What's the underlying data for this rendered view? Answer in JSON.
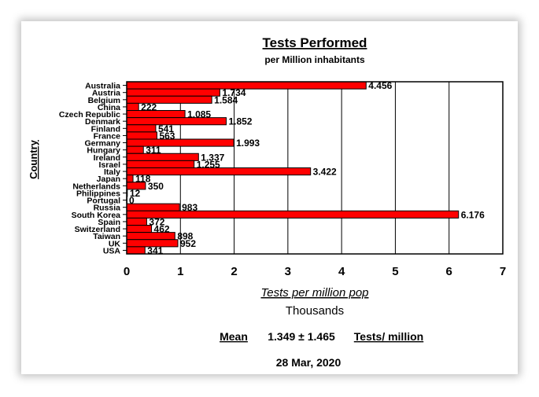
{
  "chart_data": {
    "type": "bar",
    "orientation": "horizontal",
    "title": "Tests Performed",
    "subtitle": "per Million inhabitants",
    "xlabel": "Tests per million pop",
    "xunit": "Thousands",
    "ylabel": "Country",
    "xlim": [
      0,
      7
    ],
    "xticks": [
      "0",
      "1",
      "2",
      "3",
      "4",
      "5",
      "6",
      "7"
    ],
    "grid": "vertical",
    "bar_color": "#ff0000",
    "categories": [
      "Australia",
      "Austria",
      "Belgium",
      "China",
      "Czech Republic",
      "Denmark",
      "Finland",
      "France",
      "Germany",
      "Hungary",
      "Ireland",
      "Israel",
      "Italy",
      "Japan",
      "Netherlands",
      "Philippines",
      "Portugal",
      "Russia",
      "South Korea",
      "Spain",
      "Switzerland",
      "Taiwan",
      "UK",
      "USA"
    ],
    "values": [
      4.456,
      1.734,
      1.584,
      0.222,
      1.085,
      1.852,
      0.541,
      0.563,
      1.993,
      0.311,
      1.337,
      1.255,
      3.422,
      0.118,
      0.35,
      0.012,
      0.0,
      0.983,
      6.176,
      0.372,
      0.462,
      0.898,
      0.952,
      0.341
    ],
    "labels": [
      "4.456",
      "1.734",
      "1.584",
      "222",
      "1.085",
      "1.852",
      "541",
      "563",
      "1.993",
      "311",
      "1.337",
      "1.255",
      "3.422",
      "118",
      "350",
      "12",
      "0",
      "983",
      "6.176",
      "372",
      "462",
      "898",
      "952",
      "341"
    ],
    "footer": {
      "mean_label": "Mean",
      "mean_value": "1.349 ± 1.465",
      "mean_unit": "Tests/ million",
      "date": "28 Mar, 2020"
    }
  }
}
